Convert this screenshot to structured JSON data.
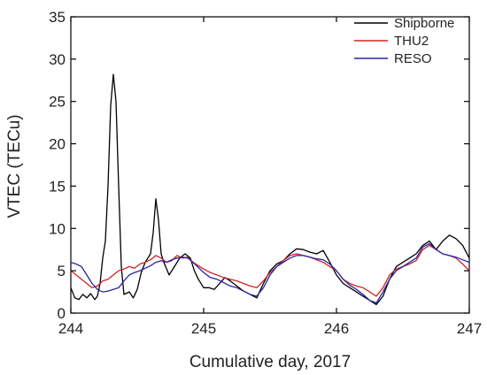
{
  "chart_data": {
    "type": "line",
    "title": "",
    "xlabel": "Cumulative day, 2017",
    "ylabel": "VTEC (TECu)",
    "xlim": [
      244,
      247
    ],
    "ylim": [
      0,
      35
    ],
    "x_ticks": [
      244,
      245,
      246,
      247
    ],
    "y_ticks": [
      0,
      5,
      10,
      15,
      20,
      25,
      30,
      35
    ],
    "grid": false,
    "legend_position": "top-right",
    "series": [
      {
        "name": "Shipborne",
        "color": "#000000",
        "points": [
          [
            244.0,
            3.0
          ],
          [
            244.03,
            1.8
          ],
          [
            244.06,
            1.6
          ],
          [
            244.09,
            2.2
          ],
          [
            244.12,
            1.8
          ],
          [
            244.15,
            2.3
          ],
          [
            244.18,
            1.6
          ],
          [
            244.2,
            2.0
          ],
          [
            244.22,
            3.5
          ],
          [
            244.24,
            6.5
          ],
          [
            244.26,
            8.5
          ],
          [
            244.28,
            15.0
          ],
          [
            244.3,
            24.5
          ],
          [
            244.32,
            28.2
          ],
          [
            244.34,
            25.0
          ],
          [
            244.36,
            15.0
          ],
          [
            244.38,
            5.5
          ],
          [
            244.4,
            2.2
          ],
          [
            244.44,
            2.5
          ],
          [
            244.47,
            1.8
          ],
          [
            244.5,
            2.8
          ],
          [
            244.53,
            4.8
          ],
          [
            244.56,
            6.0
          ],
          [
            244.58,
            6.5
          ],
          [
            244.6,
            7.0
          ],
          [
            244.62,
            9.5
          ],
          [
            244.64,
            13.5
          ],
          [
            244.66,
            11.0
          ],
          [
            244.68,
            7.0
          ],
          [
            244.7,
            6.0
          ],
          [
            244.74,
            4.5
          ],
          [
            244.78,
            5.5
          ],
          [
            244.82,
            6.5
          ],
          [
            244.86,
            7.0
          ],
          [
            244.9,
            6.5
          ],
          [
            244.93,
            5.0
          ],
          [
            244.96,
            4.0
          ],
          [
            245.0,
            3.0
          ],
          [
            245.04,
            3.0
          ],
          [
            245.08,
            2.8
          ],
          [
            245.12,
            3.5
          ],
          [
            245.16,
            4.2
          ],
          [
            245.2,
            3.8
          ],
          [
            245.25,
            3.2
          ],
          [
            245.3,
            2.6
          ],
          [
            245.35,
            2.2
          ],
          [
            245.4,
            1.8
          ],
          [
            245.45,
            3.5
          ],
          [
            245.5,
            5.0
          ],
          [
            245.55,
            5.8
          ],
          [
            245.6,
            6.2
          ],
          [
            245.65,
            7.0
          ],
          [
            245.7,
            7.6
          ],
          [
            245.75,
            7.5
          ],
          [
            245.8,
            7.2
          ],
          [
            245.85,
            7.0
          ],
          [
            245.9,
            7.4
          ],
          [
            245.95,
            6.0
          ],
          [
            246.0,
            4.5
          ],
          [
            246.05,
            3.5
          ],
          [
            246.1,
            3.0
          ],
          [
            246.15,
            2.5
          ],
          [
            246.2,
            2.0
          ],
          [
            246.25,
            1.5
          ],
          [
            246.3,
            1.0
          ],
          [
            246.35,
            2.0
          ],
          [
            246.4,
            4.0
          ],
          [
            246.45,
            5.5
          ],
          [
            246.5,
            6.0
          ],
          [
            246.55,
            6.5
          ],
          [
            246.6,
            7.0
          ],
          [
            246.65,
            8.0
          ],
          [
            246.7,
            8.5
          ],
          [
            246.75,
            7.5
          ],
          [
            246.8,
            8.5
          ],
          [
            246.85,
            9.2
          ],
          [
            246.9,
            8.8
          ],
          [
            246.95,
            8.0
          ],
          [
            247.0,
            6.5
          ]
        ]
      },
      {
        "name": "THU2",
        "color": "#d42020",
        "points": [
          [
            244.0,
            5.0
          ],
          [
            244.04,
            4.5
          ],
          [
            244.08,
            4.0
          ],
          [
            244.12,
            3.5
          ],
          [
            244.16,
            3.0
          ],
          [
            244.2,
            3.2
          ],
          [
            244.24,
            3.8
          ],
          [
            244.28,
            4.0
          ],
          [
            244.32,
            4.5
          ],
          [
            244.36,
            5.0
          ],
          [
            244.4,
            5.2
          ],
          [
            244.44,
            5.5
          ],
          [
            244.48,
            5.3
          ],
          [
            244.52,
            5.8
          ],
          [
            244.56,
            6.0
          ],
          [
            244.6,
            6.3
          ],
          [
            244.64,
            6.8
          ],
          [
            244.68,
            6.5
          ],
          [
            244.72,
            6.0
          ],
          [
            244.76,
            6.2
          ],
          [
            244.8,
            6.8
          ],
          [
            244.84,
            6.5
          ],
          [
            244.88,
            6.6
          ],
          [
            244.92,
            6.0
          ],
          [
            244.96,
            5.6
          ],
          [
            245.0,
            5.2
          ],
          [
            245.05,
            4.8
          ],
          [
            245.1,
            4.5
          ],
          [
            245.15,
            4.2
          ],
          [
            245.2,
            4.0
          ],
          [
            245.25,
            3.8
          ],
          [
            245.3,
            3.5
          ],
          [
            245.35,
            3.2
          ],
          [
            245.4,
            3.0
          ],
          [
            245.45,
            3.8
          ],
          [
            245.5,
            4.8
          ],
          [
            245.55,
            5.5
          ],
          [
            245.6,
            6.2
          ],
          [
            245.65,
            6.8
          ],
          [
            245.7,
            7.0
          ],
          [
            245.75,
            6.8
          ],
          [
            245.8,
            6.6
          ],
          [
            245.85,
            6.3
          ],
          [
            245.9,
            6.0
          ],
          [
            245.95,
            5.5
          ],
          [
            246.0,
            5.0
          ],
          [
            246.05,
            4.0
          ],
          [
            246.1,
            3.5
          ],
          [
            246.15,
            3.2
          ],
          [
            246.2,
            3.0
          ],
          [
            246.25,
            2.5
          ],
          [
            246.3,
            2.0
          ],
          [
            246.35,
            3.0
          ],
          [
            246.4,
            4.5
          ],
          [
            246.45,
            5.2
          ],
          [
            246.5,
            5.5
          ],
          [
            246.55,
            5.8
          ],
          [
            246.6,
            6.2
          ],
          [
            246.65,
            7.5
          ],
          [
            246.7,
            8.0
          ],
          [
            246.75,
            7.5
          ],
          [
            246.8,
            7.0
          ],
          [
            246.85,
            6.8
          ],
          [
            246.9,
            6.5
          ],
          [
            246.95,
            5.8
          ],
          [
            247.0,
            5.0
          ]
        ]
      },
      {
        "name": "RESO",
        "color": "#2626a6",
        "points": [
          [
            244.0,
            6.0
          ],
          [
            244.04,
            5.8
          ],
          [
            244.08,
            5.5
          ],
          [
            244.12,
            4.5
          ],
          [
            244.16,
            3.5
          ],
          [
            244.2,
            2.8
          ],
          [
            244.24,
            2.5
          ],
          [
            244.28,
            2.6
          ],
          [
            244.32,
            2.8
          ],
          [
            244.36,
            3.0
          ],
          [
            244.4,
            3.8
          ],
          [
            244.44,
            4.5
          ],
          [
            244.48,
            4.8
          ],
          [
            244.52,
            5.0
          ],
          [
            244.56,
            5.3
          ],
          [
            244.6,
            5.6
          ],
          [
            244.64,
            6.0
          ],
          [
            244.68,
            6.2
          ],
          [
            244.72,
            6.0
          ],
          [
            244.76,
            6.3
          ],
          [
            244.8,
            6.5
          ],
          [
            244.84,
            6.6
          ],
          [
            244.88,
            6.5
          ],
          [
            244.92,
            6.0
          ],
          [
            244.96,
            5.4
          ],
          [
            245.0,
            4.8
          ],
          [
            245.05,
            4.2
          ],
          [
            245.1,
            4.0
          ],
          [
            245.15,
            3.6
          ],
          [
            245.2,
            3.2
          ],
          [
            245.25,
            3.0
          ],
          [
            245.3,
            2.6
          ],
          [
            245.35,
            2.2
          ],
          [
            245.4,
            2.0
          ],
          [
            245.45,
            3.0
          ],
          [
            245.5,
            4.5
          ],
          [
            245.55,
            5.5
          ],
          [
            245.6,
            6.0
          ],
          [
            245.65,
            6.5
          ],
          [
            245.7,
            6.8
          ],
          [
            245.75,
            6.8
          ],
          [
            245.8,
            6.6
          ],
          [
            245.85,
            6.4
          ],
          [
            245.9,
            6.3
          ],
          [
            245.95,
            5.8
          ],
          [
            246.0,
            5.0
          ],
          [
            246.05,
            4.0
          ],
          [
            246.1,
            3.3
          ],
          [
            246.15,
            2.8
          ],
          [
            246.2,
            2.2
          ],
          [
            246.25,
            1.5
          ],
          [
            246.3,
            1.2
          ],
          [
            246.35,
            2.5
          ],
          [
            246.4,
            4.0
          ],
          [
            246.45,
            5.0
          ],
          [
            246.5,
            5.5
          ],
          [
            246.55,
            6.0
          ],
          [
            246.6,
            6.5
          ],
          [
            246.65,
            7.8
          ],
          [
            246.7,
            8.2
          ],
          [
            246.75,
            7.5
          ],
          [
            246.8,
            7.0
          ],
          [
            246.85,
            6.8
          ],
          [
            246.9,
            6.6
          ],
          [
            246.95,
            6.3
          ],
          [
            247.0,
            6.0
          ]
        ]
      }
    ]
  }
}
